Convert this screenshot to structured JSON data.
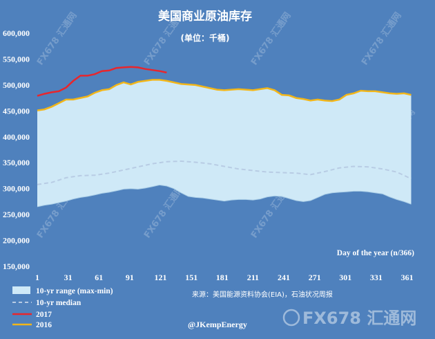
{
  "chart_data": {
    "type": "line",
    "title": "美国商业原油库存",
    "subtitle": "(单位：千桶)",
    "xlabel": "Day of the year (n/366)",
    "ylabel": "",
    "xlim": [
      1,
      366
    ],
    "ylim": [
      150000,
      600000
    ],
    "x_ticks": [
      1,
      31,
      61,
      91,
      121,
      151,
      181,
      211,
      241,
      271,
      301,
      331,
      361
    ],
    "y_ticks": [
      150000,
      200000,
      250000,
      300000,
      350000,
      400000,
      450000,
      500000,
      550000,
      600000
    ],
    "y_tick_labels": [
      "150,000",
      "200,000",
      "250,000",
      "300,000",
      "350,000",
      "400,000",
      "450,000",
      "500,000",
      "550,000",
      "600,000"
    ],
    "grid": false,
    "legend_position": "bottom-left",
    "source": "来源：美国能源资料协会(EIA)，石油状况周报",
    "credit": "@JKempEnergy",
    "watermark": "FX678 汇通网",
    "series": [
      {
        "name": "10-yr range (max-min)",
        "kind": "band",
        "color": "#cfe9f7",
        "x": [
          1,
          8,
          15,
          22,
          29,
          36,
          43,
          50,
          57,
          64,
          71,
          78,
          85,
          92,
          99,
          106,
          113,
          120,
          127,
          134,
          141,
          148,
          155,
          162,
          169,
          176,
          183,
          190,
          197,
          204,
          211,
          218,
          225,
          232,
          239,
          246,
          253,
          260,
          267,
          274,
          281,
          288,
          295,
          302,
          309,
          316,
          323,
          330,
          337,
          344,
          351,
          358,
          365
        ],
        "upper": [
          451000,
          453000,
          458000,
          465000,
          472000,
          472000,
          475000,
          478000,
          485000,
          490000,
          492000,
          500000,
          505000,
          501000,
          506000,
          508000,
          510000,
          510000,
          508000,
          505000,
          502000,
          501000,
          500000,
          497000,
          494000,
          491000,
          490000,
          491000,
          492000,
          491000,
          490000,
          492000,
          494000,
          490000,
          481000,
          480000,
          475000,
          473000,
          470000,
          472000,
          470000,
          469000,
          472000,
          481000,
          484000,
          489000,
          488000,
          488000,
          486000,
          484000,
          483000,
          484000,
          481000
        ],
        "lower": [
          265000,
          268000,
          270000,
          273000,
          276000,
          280000,
          283000,
          285000,
          288000,
          291000,
          293000,
          296000,
          299000,
          300000,
          299000,
          301000,
          304000,
          307000,
          305000,
          300000,
          292000,
          285000,
          283000,
          282000,
          280000,
          278000,
          276000,
          278000,
          279000,
          279000,
          278000,
          280000,
          284000,
          286000,
          285000,
          281000,
          277000,
          275000,
          277000,
          283000,
          289000,
          292000,
          293000,
          294000,
          295000,
          295000,
          294000,
          292000,
          290000,
          284000,
          279000,
          275000,
          270000
        ]
      },
      {
        "name": "10-yr median",
        "kind": "line",
        "style": "dashed",
        "color": "#b8cce4",
        "x": [
          1,
          15,
          29,
          43,
          57,
          71,
          85,
          99,
          113,
          127,
          141,
          155,
          169,
          183,
          197,
          211,
          225,
          239,
          253,
          267,
          281,
          295,
          309,
          323,
          337,
          351,
          365
        ],
        "values": [
          308000,
          312000,
          321000,
          325000,
          326000,
          330000,
          336000,
          342000,
          348000,
          352000,
          353000,
          351000,
          348000,
          343000,
          338000,
          335000,
          332000,
          331000,
          330000,
          327000,
          333000,
          340000,
          343000,
          342000,
          338000,
          332000,
          319000
        ]
      },
      {
        "name": "2017",
        "kind": "line",
        "color": "#e8262c",
        "x": [
          1,
          8,
          15,
          22,
          29,
          36,
          43,
          50,
          57,
          64,
          71,
          78,
          85,
          92,
          99,
          106,
          113,
          120,
          127
        ],
        "values": [
          479000,
          483000,
          486000,
          488000,
          495000,
          508000,
          518000,
          518000,
          521000,
          527000,
          528000,
          533000,
          534000,
          535000,
          534000,
          531000,
          529000,
          527000,
          524000
        ]
      },
      {
        "name": "2016",
        "kind": "line",
        "color": "#f2b619",
        "x": [
          1,
          8,
          15,
          22,
          29,
          36,
          43,
          50,
          57,
          64,
          71,
          78,
          85,
          92,
          99,
          106,
          113,
          120,
          127,
          134,
          141,
          148,
          155,
          162,
          169,
          176,
          183,
          190,
          197,
          204,
          211,
          218,
          225,
          232,
          239,
          246,
          253,
          260,
          267,
          274,
          281,
          288,
          295,
          302,
          309,
          316,
          323,
          330,
          337,
          344,
          351,
          358,
          365
        ],
        "values": [
          451000,
          453000,
          458000,
          465000,
          472000,
          472000,
          475000,
          478000,
          485000,
          490000,
          492000,
          500000,
          505000,
          501000,
          506000,
          508000,
          510000,
          510000,
          508000,
          505000,
          502000,
          501000,
          500000,
          497000,
          494000,
          491000,
          490000,
          491000,
          492000,
          491000,
          490000,
          492000,
          494000,
          490000,
          481000,
          480000,
          475000,
          473000,
          470000,
          472000,
          470000,
          469000,
          472000,
          481000,
          484000,
          489000,
          488000,
          488000,
          486000,
          484000,
          483000,
          484000,
          481000
        ]
      }
    ]
  }
}
